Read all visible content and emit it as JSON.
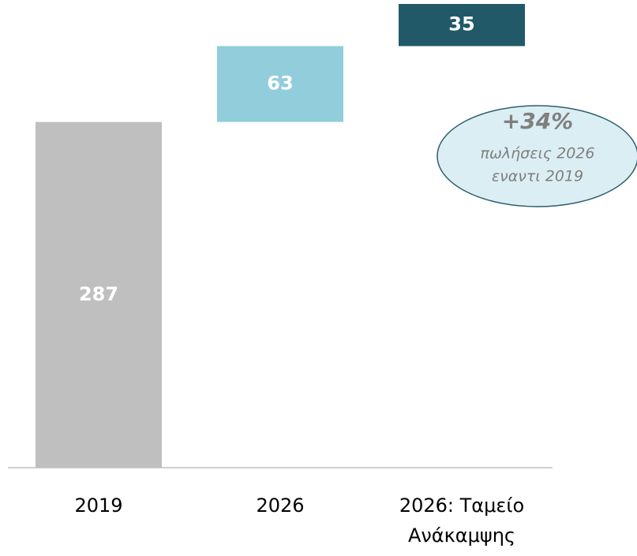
{
  "chart_data": {
    "type": "waterfall",
    "categories": [
      "2019",
      "2026",
      "2026: Ταμείο Ανάκαμψης"
    ],
    "values": [
      287,
      63,
      35
    ],
    "colors": [
      "#bfbfbf",
      "#92cddc",
      "#215968"
    ],
    "annotation": {
      "title": "+34%",
      "lines": [
        "πωλήσεις 2026",
        "εναντι 2019"
      ]
    }
  }
}
